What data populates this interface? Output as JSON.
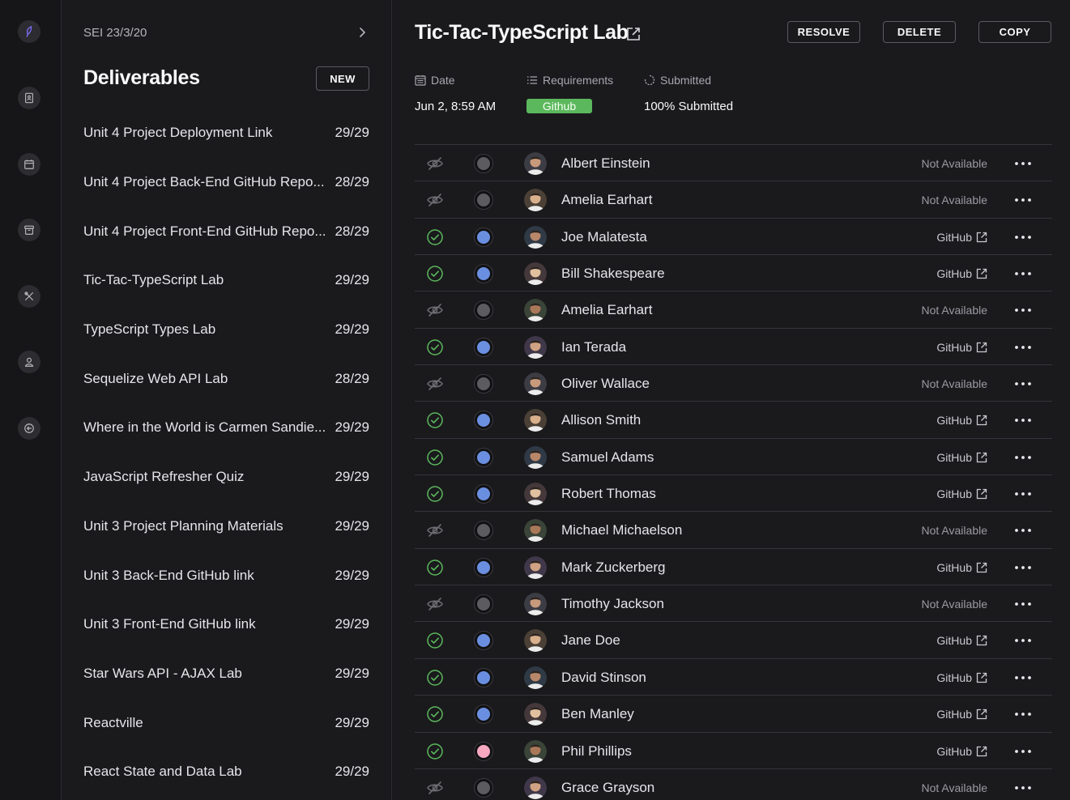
{
  "rail": {
    "items": [
      {
        "icon": "logo-feather-icon"
      },
      {
        "icon": "contacts-book-icon"
      },
      {
        "icon": "calendar-icon"
      },
      {
        "icon": "archive-box-icon"
      },
      {
        "icon": "tools-icon"
      },
      {
        "icon": "user-icon"
      },
      {
        "icon": "logout-icon"
      }
    ]
  },
  "deliverables": {
    "cohort": "SEI 23/3/20",
    "title": "Deliverables",
    "new_label": "NEW",
    "items": [
      {
        "name": "Unit 4 Project Deployment Link",
        "count": "29/29"
      },
      {
        "name": "Unit 4 Project Back-End GitHub Repo...",
        "count": "28/29"
      },
      {
        "name": "Unit 4 Project Front-End GitHub Repo...",
        "count": "28/29"
      },
      {
        "name": "Tic-Tac-TypeScript Lab",
        "count": "29/29"
      },
      {
        "name": "TypeScript Types Lab",
        "count": "29/29"
      },
      {
        "name": "Sequelize Web API Lab",
        "count": "28/29"
      },
      {
        "name": "Where in the World is Carmen Sandie...",
        "count": "29/29"
      },
      {
        "name": "JavaScript Refresher Quiz",
        "count": "29/29"
      },
      {
        "name": "Unit 3 Project Planning Materials",
        "count": "29/29"
      },
      {
        "name": "Unit 3 Back-End GitHub link",
        "count": "29/29"
      },
      {
        "name": "Unit 3 Front-End GitHub link",
        "count": "29/29"
      },
      {
        "name": "Star Wars API - AJAX Lab",
        "count": "29/29"
      },
      {
        "name": "Reactville",
        "count": "29/29"
      },
      {
        "name": "React State and Data Lab",
        "count": "29/29"
      }
    ]
  },
  "header": {
    "title": "Tic-Tac-TypeScript Lab",
    "resolve_label": "RESOLVE",
    "delete_label": "DELETE",
    "copy_label": "COPY"
  },
  "meta": {
    "date_label": "Date",
    "date_value": "Jun 2, 8:59 AM",
    "requirements_label": "Requirements",
    "requirement_tag": "Github",
    "submitted_label": "Submitted",
    "submitted_value": "100% Submitted"
  },
  "colors": {
    "accent_green": "#5cb85c",
    "dot_blue": "#6b8fe0",
    "dot_pink": "#f5a8c0",
    "dot_gray": "#5b5b60"
  },
  "students": [
    {
      "name": "Albert Einstein",
      "status": "hidden",
      "dot": "gray",
      "submission": "Not Available"
    },
    {
      "name": "Amelia Earhart",
      "status": "hidden",
      "dot": "gray",
      "submission": "Not Available"
    },
    {
      "name": "Joe Malatesta",
      "status": "done",
      "dot": "blue",
      "submission": "GitHub"
    },
    {
      "name": "Bill Shakespeare",
      "status": "done",
      "dot": "blue",
      "submission": "GitHub"
    },
    {
      "name": "Amelia Earhart",
      "status": "hidden",
      "dot": "gray",
      "submission": "Not Available"
    },
    {
      "name": "Ian Terada",
      "status": "done",
      "dot": "blue",
      "submission": "GitHub"
    },
    {
      "name": "Oliver  Wallace",
      "status": "hidden",
      "dot": "gray",
      "submission": "Not Available"
    },
    {
      "name": "Allison Smith",
      "status": "done",
      "dot": "blue",
      "submission": "GitHub"
    },
    {
      "name": "Samuel Adams",
      "status": "done",
      "dot": "blue",
      "submission": "GitHub"
    },
    {
      "name": "Robert Thomas",
      "status": "done",
      "dot": "blue",
      "submission": "GitHub"
    },
    {
      "name": "Michael Michaelson",
      "status": "hidden",
      "dot": "gray",
      "submission": "Not Available"
    },
    {
      "name": "Mark Zuckerberg",
      "status": "done",
      "dot": "blue",
      "submission": "GitHub"
    },
    {
      "name": "Timothy Jackson",
      "status": "hidden",
      "dot": "gray",
      "submission": "Not Available"
    },
    {
      "name": "Jane Doe",
      "status": "done",
      "dot": "blue",
      "submission": "GitHub"
    },
    {
      "name": "David Stinson",
      "status": "done",
      "dot": "blue",
      "submission": "GitHub"
    },
    {
      "name": "Ben Manley",
      "status": "done",
      "dot": "blue",
      "submission": "GitHub"
    },
    {
      "name": "Phil Phillips",
      "status": "done",
      "dot": "pink",
      "submission": "GitHub"
    },
    {
      "name": "Grace Grayson",
      "status": "hidden",
      "dot": "gray",
      "submission": "Not Available"
    }
  ]
}
